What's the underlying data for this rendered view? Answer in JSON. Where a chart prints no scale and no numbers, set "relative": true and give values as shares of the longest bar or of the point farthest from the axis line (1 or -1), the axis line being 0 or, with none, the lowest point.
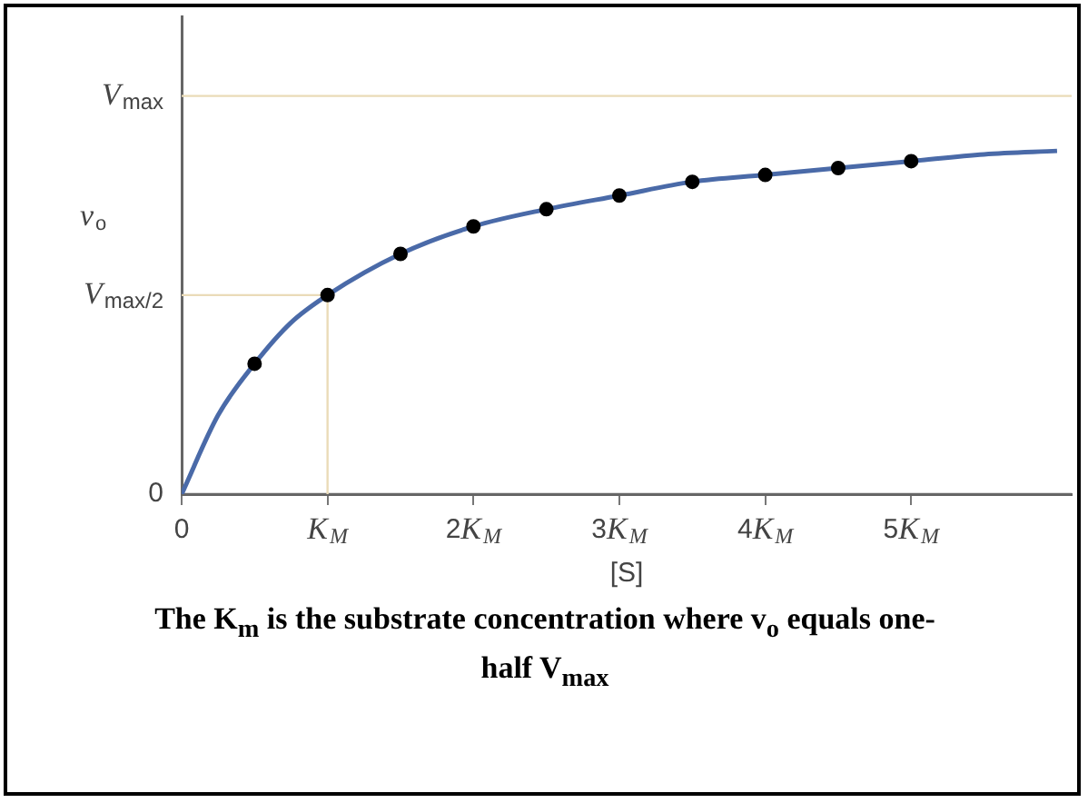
{
  "chart_data": {
    "type": "line",
    "relative": true,
    "xlabel": "[S]",
    "ylabel": "v$_{o}$",
    "xlim": [
      0,
      6.1
    ],
    "xticks": [
      0,
      {
        "value": 1,
        "label": "K$_{M}$"
      },
      {
        "value": 2,
        "label": "2K$_{M}$"
      },
      {
        "value": 3,
        "label": "3K$_{M}$"
      },
      {
        "value": 4,
        "label": "4K$_{M}$"
      },
      {
        "value": 5,
        "label": "5K$_{M}$"
      }
    ],
    "grid": false,
    "legend": false,
    "series": [
      {
        "color": "#4a6aa8",
        "marker": "none",
        "x": [
          0,
          0.25,
          0.5,
          0.75,
          1,
          1.5,
          2,
          2.5,
          3,
          3.5,
          4,
          4.5,
          5,
          5.5,
          6
        ],
        "values": [
          0,
          0.23,
          0.38,
          0.5,
          0.58,
          0.7,
          0.78,
          0.83,
          0.87,
          0.91,
          0.93,
          0.95,
          0.97,
          0.99,
          1
        ]
      },
      {
        "type": "scatter",
        "color": "#000000",
        "marker": "circle",
        "x": [
          0.5,
          1,
          1.5,
          2,
          2.5,
          3,
          3.5,
          4,
          4.5,
          5
        ],
        "values": [
          0.38,
          0.58,
          0.7,
          0.78,
          0.83,
          0.87,
          0.91,
          0.93,
          0.95,
          0.97
        ]
      }
    ],
    "ref_lines": [
      {
        "axis": "y",
        "value": 0,
        "label": "0",
        "color": "#666666"
      },
      {
        "axis": "y",
        "value": 1.16,
        "label": "V$_{max}$",
        "color": "#eadbb8"
      },
      {
        "axis": "y",
        "value": 0.58,
        "label": "V$_{max/2}$",
        "color": "#eadbb8"
      },
      {
        "axis": "x",
        "value": 1,
        "color": "#eadbb8"
      }
    ],
    "annotations": [
      "The K$_{m}$ is the substrate concentration where v$_{o}$ equals one-half V$_{max}$"
    ]
  }
}
